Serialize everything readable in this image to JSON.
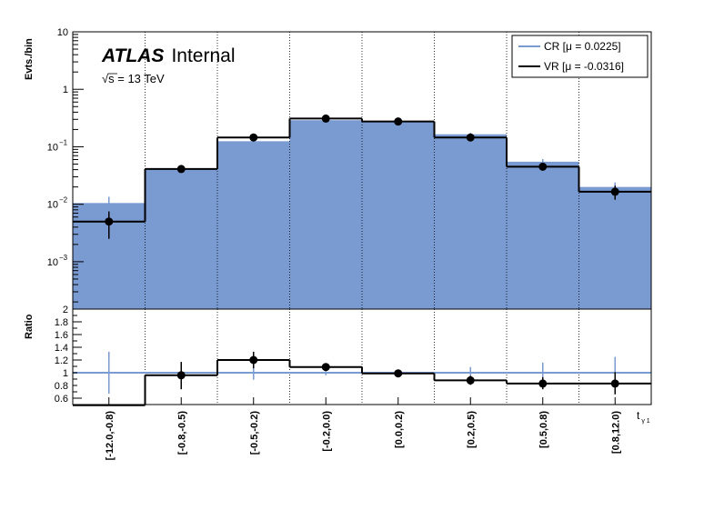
{
  "chart_data": [
    {
      "panel": "main",
      "type": "bar",
      "ylabel": "Evts./bin",
      "yscale": "log",
      "ylim": [
        0.00015,
        10
      ],
      "y_ticks": [
        {
          "value": 10,
          "base": "10",
          "exp": ""
        },
        {
          "value": 1,
          "base": "1",
          "exp": ""
        },
        {
          "value": 0.1,
          "base": "10",
          "exp": "−1"
        },
        {
          "value": 0.01,
          "base": "10",
          "exp": "−2"
        },
        {
          "value": 0.001,
          "base": "10",
          "exp": "−3"
        }
      ],
      "categories": [
        "[-12.0,-0.8)",
        "[-0.8,-0.5)",
        "[-0.5,-0.2)",
        "[-0.2,0.0)",
        "[0.0,0.2)",
        "[0.2,0.5)",
        "[0.5,0.8)",
        "[0.8,12.0)"
      ],
      "series": [
        {
          "name": "CR [μ = 0.0225]",
          "color": "#7a9ad2",
          "style": "filled-histogram",
          "values": [
            0.0105,
            0.041,
            0.125,
            0.29,
            0.27,
            0.165,
            0.055,
            0.02
          ],
          "err_up": [
            0.0135,
            0.044,
            0.133,
            0.3,
            0.28,
            0.175,
            0.061,
            0.024
          ],
          "err_down": [
            0.0075,
            0.038,
            0.117,
            0.28,
            0.26,
            0.155,
            0.049,
            0.016
          ]
        },
        {
          "name": "VR [μ = -0.0316]",
          "color": "#000000",
          "style": "points-with-step",
          "values": [
            0.005,
            0.041,
            0.145,
            0.31,
            0.275,
            0.145,
            0.045,
            0.0165
          ],
          "err_up": [
            0.0075,
            0.045,
            0.155,
            0.325,
            0.29,
            0.155,
            0.05,
            0.021
          ],
          "err_down": [
            0.0025,
            0.037,
            0.135,
            0.295,
            0.26,
            0.135,
            0.04,
            0.012
          ]
        }
      ],
      "legend": "top-right",
      "grid": "vertical dotted lines at bin edges"
    },
    {
      "panel": "ratio",
      "type": "scatter",
      "ylabel": "Ratio",
      "ylim": [
        0.5,
        2.0
      ],
      "y_ticks": [
        0.6,
        0.8,
        1,
        1.2,
        1.4,
        1.6,
        1.8,
        2
      ],
      "xlabel": "t",
      "xlabel_sub": "γ 1",
      "categories": [
        "[-12.0,-0.8)",
        "[-0.8,-0.5)",
        "[-0.5,-0.2)",
        "[-0.2,0.0)",
        "[0.0,0.2)",
        "[0.2,0.5)",
        "[0.5,0.8)",
        "[0.8,12.0)"
      ],
      "series": [
        {
          "name": "CR [μ = 0.0225]",
          "color": "#7a9ad2",
          "values": [
            1,
            1,
            1,
            1,
            1,
            1,
            1,
            1
          ],
          "err_up": [
            1.33,
            1.05,
            1.11,
            1.04,
            1.04,
            1.09,
            1.16,
            1.25
          ],
          "err_down": [
            0.67,
            0.95,
            0.89,
            0.96,
            0.96,
            0.91,
            0.84,
            0.75
          ]
        },
        {
          "name": "VR [μ = -0.0316]",
          "color": "#000000",
          "values": [
            0.49,
            0.96,
            1.2,
            1.09,
            0.99,
            0.88,
            0.83,
            0.83
          ],
          "err_up": [
            0.55,
            1.17,
            1.33,
            1.15,
            1.03,
            0.95,
            0.93,
            1.01
          ],
          "err_down": [
            0.43,
            0.74,
            1.07,
            1.03,
            0.95,
            0.81,
            0.74,
            0.66
          ]
        }
      ]
    }
  ],
  "labels": {
    "experiment": "ATLAS",
    "status": "Internal",
    "energy_sqrt": "√s",
    "energy_value": " = 13 TeV",
    "legend_cr": "CR [μ = 0.0225]",
    "legend_vr": "VR [μ = -0.0316]"
  }
}
